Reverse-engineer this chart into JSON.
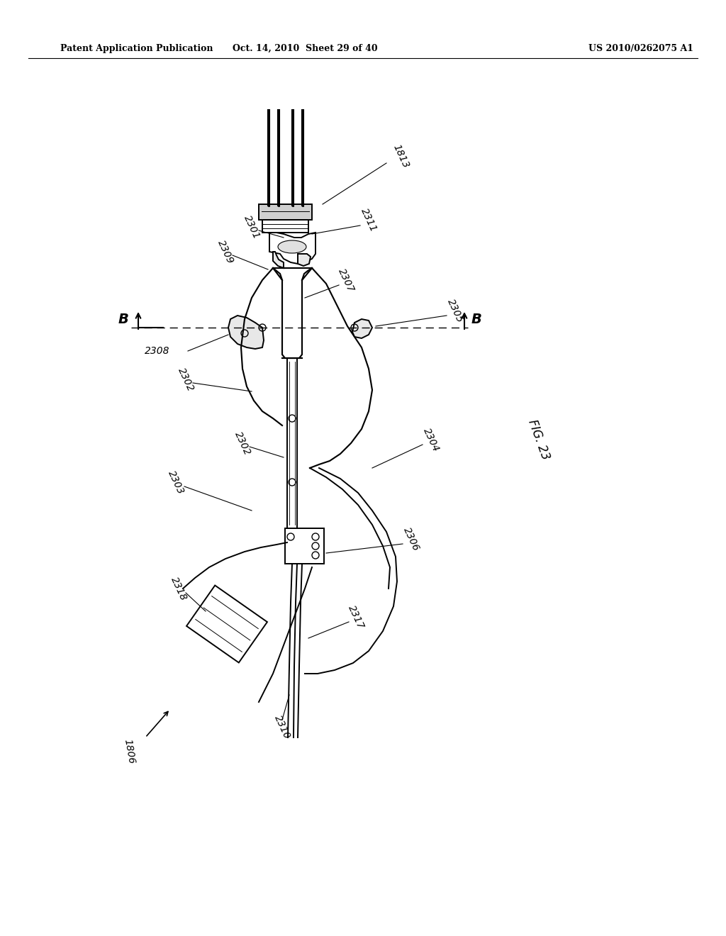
{
  "bg_color": "#ffffff",
  "header_left": "Patent Application Publication",
  "header_mid": "Oct. 14, 2010  Sheet 29 of 40",
  "header_right": "US 2010/0262075 A1",
  "fig_label": "FIG. 23"
}
